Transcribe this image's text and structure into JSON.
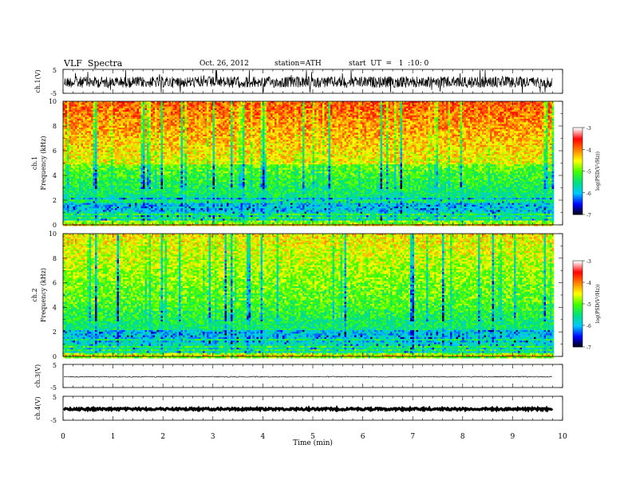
{
  "header": {
    "title": "VLF  Spectra",
    "date": "Oct. 26, 2012",
    "station": "station=ATH",
    "start": "start  UT  =   1  :10: 0"
  },
  "chart_data": [
    {
      "type": "line",
      "name": "ch1-waveform",
      "ylabel": "ch.1(V)",
      "ylim": [
        -5,
        5
      ],
      "yticks": [
        "5",
        "-5"
      ],
      "xlim": [
        0,
        10
      ],
      "description_level": -0.5
    },
    {
      "type": "heatmap",
      "name": "ch1-spectrogram",
      "ylabel": [
        "ch.1",
        "Frequency  (kHz)"
      ],
      "ylim": [
        0,
        10
      ],
      "yticks": [
        "0",
        "2",
        "4",
        "6",
        "8",
        "10"
      ],
      "xlim": [
        0,
        9.8
      ],
      "colorbar": {
        "label": "log(PSD(V²/Hz))",
        "ticks": [
          "-3",
          "-4",
          "-5",
          "-6",
          "-7"
        ],
        "range": [
          -7,
          -3
        ]
      }
    },
    {
      "type": "heatmap",
      "name": "ch2-spectrogram",
      "ylabel": [
        "ch.2",
        "Frequency  (kHz)"
      ],
      "ylim": [
        0,
        10
      ],
      "yticks": [
        "0",
        "2",
        "4",
        "6",
        "8",
        "10"
      ],
      "xlim": [
        0,
        9.8
      ],
      "colorbar": {
        "label": "log(PSD(V²/Hz))",
        "ticks": [
          "-3",
          "-4",
          "-5",
          "-6",
          "-7"
        ],
        "range": [
          -7,
          -3
        ]
      }
    },
    {
      "type": "line",
      "name": "ch3-waveform",
      "ylabel": "ch.3(V)",
      "ylim": [
        -5,
        5
      ],
      "yticks": [
        "5",
        "-5"
      ],
      "xlim": [
        0,
        10
      ]
    },
    {
      "type": "line",
      "name": "ch4-waveform",
      "ylabel": "ch.4(V)",
      "ylim": [
        -5,
        5
      ],
      "yticks": [
        "5",
        "-5"
      ],
      "xlim": [
        0,
        10
      ]
    }
  ],
  "xaxis": {
    "label": "Time  (min)",
    "ticks": [
      "0",
      "1",
      "2",
      "3",
      "4",
      "5",
      "6",
      "7",
      "8",
      "9",
      "10"
    ],
    "range": [
      0,
      10
    ]
  },
  "colors": {
    "background": "#ffffff",
    "axis": "#000000",
    "colormap": [
      "#000000",
      "#0000ff",
      "#00c8ff",
      "#00e080",
      "#40ff00",
      "#ffff00",
      "#ff8000",
      "#ff0000",
      "#ffffff"
    ]
  }
}
